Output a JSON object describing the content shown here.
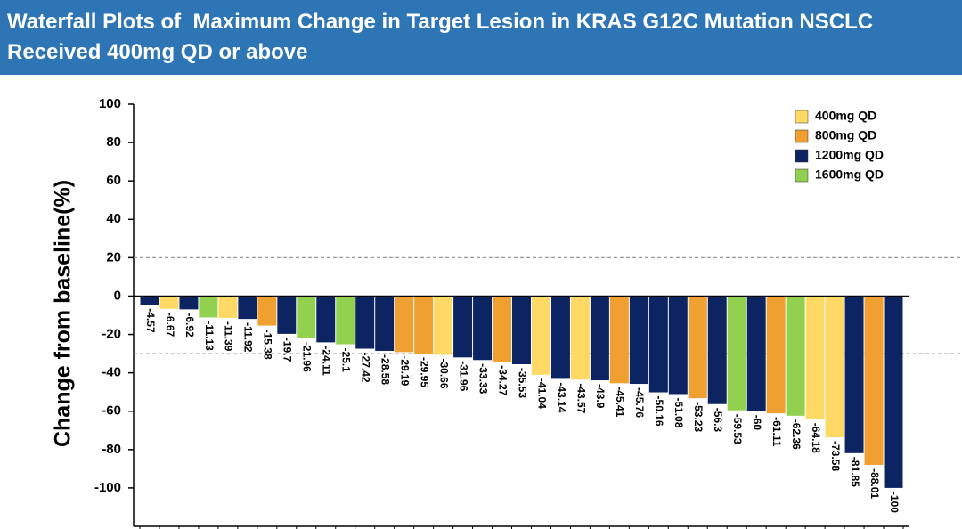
{
  "chart_data": {
    "type": "waterfall",
    "title": "Waterfall Plots of  Maximum Change in Target Lesion in KRAS G12C Mutation NSCLC Received 400mg QD or above",
    "y_label": "Change from baseline(%)",
    "categories": [
      null,
      null,
      null,
      null,
      null,
      null,
      null,
      null,
      null,
      null,
      null,
      null,
      null,
      null,
      null,
      null,
      null,
      null,
      null,
      null,
      null,
      null,
      null,
      null,
      null,
      null,
      null,
      null,
      null,
      null,
      null,
      null,
      null,
      null,
      null,
      null,
      null,
      null,
      null
    ],
    "series": [
      {
        "name": "400mg QD",
        "color": "#ffd966",
        "values": [
          null,
          -6.67,
          null,
          null,
          -11.39,
          null,
          null,
          null,
          null,
          null,
          null,
          null,
          null,
          null,
          null,
          -30.66,
          null,
          null,
          null,
          null,
          -41.04,
          null,
          -43.57,
          null,
          null,
          null,
          null,
          null,
          null,
          null,
          null,
          null,
          null,
          null,
          -64.18,
          -73.58,
          null,
          null,
          null
        ]
      },
      {
        "name": "800mg QD",
        "color": "#f0a030",
        "values": [
          null,
          null,
          null,
          null,
          null,
          null,
          -15.38,
          null,
          null,
          null,
          null,
          null,
          null,
          -29.19,
          -29.95,
          null,
          null,
          null,
          -34.27,
          null,
          null,
          null,
          null,
          null,
          -45.41,
          null,
          null,
          null,
          -53.23,
          null,
          null,
          null,
          -61.11,
          null,
          null,
          null,
          null,
          -88.01,
          null
        ]
      },
      {
        "name": "1200mg QD",
        "color": "#0d2463",
        "values": [
          -4.57,
          null,
          -6.92,
          null,
          null,
          -11.92,
          null,
          -19.7,
          null,
          -24.11,
          null,
          -27.42,
          -28.58,
          null,
          null,
          null,
          -31.96,
          -33.33,
          null,
          -35.53,
          null,
          -43.14,
          null,
          -43.9,
          null,
          -45.76,
          -50.16,
          -51.08,
          null,
          -56.3,
          null,
          -60,
          null,
          null,
          null,
          null,
          -81.85,
          null,
          -100
        ]
      },
      {
        "name": "1600mg QD",
        "color": "#92d050",
        "values": [
          null,
          null,
          null,
          -11.13,
          null,
          null,
          null,
          null,
          -21.96,
          null,
          -25.1,
          null,
          null,
          null,
          null,
          null,
          null,
          null,
          null,
          null,
          null,
          null,
          null,
          null,
          null,
          null,
          null,
          null,
          null,
          null,
          -59.53,
          null,
          null,
          -62.36,
          null,
          null,
          null,
          null,
          null
        ]
      }
    ],
    "ylim": [
      -120,
      100
    ],
    "yticks": [
      -100,
      -80,
      -60,
      -40,
      -20,
      0,
      20,
      40,
      60,
      80,
      100
    ],
    "reference_lines": [
      20,
      -30
    ],
    "legend": "top-right"
  }
}
